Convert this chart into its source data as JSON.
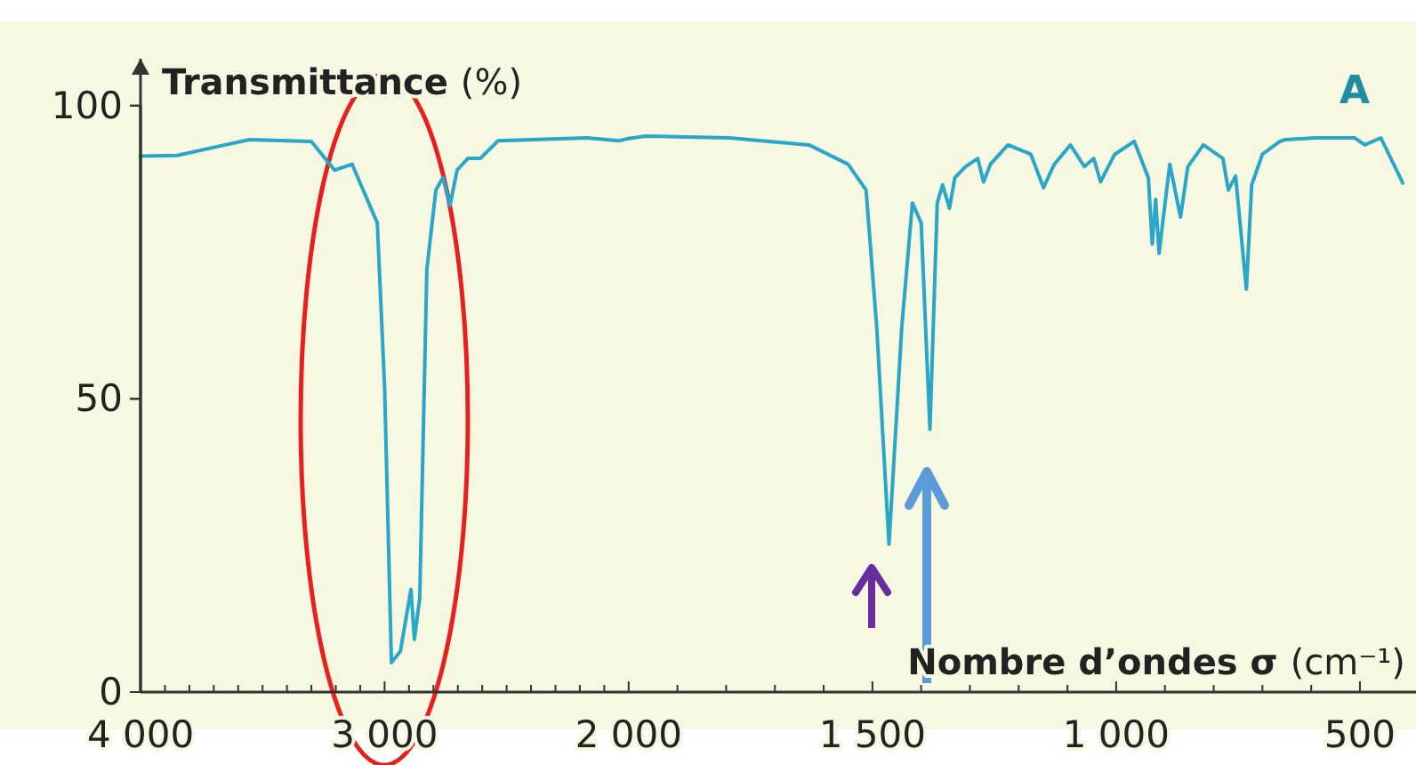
{
  "chart_data": [
    {
      "type": "line",
      "ylabel": "Transmittance (%)",
      "xlim": [
        4000,
        2000
      ],
      "ylim": [
        0,
        108
      ],
      "yticks": [
        0,
        50,
        100
      ],
      "xticks": [
        {
          "value": 4000,
          "label": "4 000"
        },
        {
          "value": 3900,
          "label": null
        },
        {
          "value": 3800,
          "label": null
        },
        {
          "value": 3700,
          "label": null
        },
        {
          "value": 3600,
          "label": null
        },
        {
          "value": 3500,
          "label": null
        },
        {
          "value": 3400,
          "label": null
        },
        {
          "value": 3300,
          "label": null
        },
        {
          "value": 3200,
          "label": null
        },
        {
          "value": 3100,
          "label": null
        },
        {
          "value": 3000,
          "label": "3 000"
        },
        {
          "value": 2900,
          "label": null
        },
        {
          "value": 2800,
          "label": null
        },
        {
          "value": 2700,
          "label": null
        },
        {
          "value": 2600,
          "label": null
        },
        {
          "value": 2500,
          "label": null
        },
        {
          "value": 2400,
          "label": null
        },
        {
          "value": 2300,
          "label": null
        },
        {
          "value": 2200,
          "label": null
        },
        {
          "value": 2100,
          "label": null
        }
      ],
      "grid": false,
      "marker": "none",
      "line_style": "solid",
      "series": [
        {
          "color": "#2aa6c8",
          "x": [
            4000,
            3850,
            3555,
            3300,
            3205,
            3133,
            3030,
            3000,
            2972,
            2935,
            2892,
            2878,
            2856,
            2827,
            2790,
            2761,
            2732,
            2703,
            2659,
            2608,
            2535,
            2171,
            2039,
            2000
          ],
          "values": [
            91.4,
            91.5,
            94.2,
            93.9,
            89,
            90,
            80,
            52,
            5,
            7,
            17.5,
            9,
            16,
            72,
            85.6,
            87.7,
            83,
            89,
            91,
            91,
            94,
            94.5,
            94,
            94.4
          ]
        }
      ]
    },
    {
      "type": "line",
      "xlabel": "Nombre d’ondes σ (cm⁻¹)",
      "annotations": [
        "A"
      ],
      "tick_labels": "x",
      "xlim": [
        2000,
        385
      ],
      "ylim": [
        0,
        100
      ],
      "yticks": [
        0,
        50,
        100
      ],
      "xticks": [
        {
          "value": 2000,
          "label": "2 000"
        },
        {
          "value": 1900,
          "label": null
        },
        {
          "value": 1800,
          "label": null
        },
        {
          "value": 1700,
          "label": null
        },
        {
          "value": 1600,
          "label": null
        },
        {
          "value": 1500,
          "label": "1 500"
        },
        {
          "value": 1400,
          "label": null
        },
        {
          "value": 1300,
          "label": null
        },
        {
          "value": 1200,
          "label": null
        },
        {
          "value": 1100,
          "label": null
        },
        {
          "value": 1000,
          "label": "1 000"
        },
        {
          "value": 900,
          "label": null
        },
        {
          "value": 800,
          "label": null
        },
        {
          "value": 700,
          "label": null
        },
        {
          "value": 600,
          "label": null
        },
        {
          "value": 500,
          "label": "500"
        }
      ],
      "grid": false,
      "marker": "none",
      "line_style": "solid",
      "series": [
        {
          "color": "#2aa6c8",
          "x": [
            2000,
            1965,
            1794,
            1630,
            1550,
            1513,
            1491,
            1466,
            1440,
            1418,
            1400,
            1382,
            1367,
            1356,
            1342,
            1331,
            1309,
            1284,
            1272,
            1258,
            1222,
            1175,
            1149,
            1127,
            1094,
            1065,
            1046,
            1032,
            1003,
            963,
            934,
            926,
            919,
            912,
            901,
            890,
            868,
            853,
            821,
            781,
            770,
            755,
            733,
            722,
            700,
            664,
            653,
            591,
            511,
            490,
            457,
            412
          ],
          "values": [
            94.4,
            94.8,
            94.5,
            93.3,
            90,
            85.6,
            62,
            25.2,
            62,
            83.4,
            80,
            44.8,
            83.4,
            86.5,
            82.5,
            87.7,
            89.6,
            91,
            87,
            90,
            93.3,
            91.7,
            86,
            90,
            93.3,
            89.6,
            91,
            87,
            91.7,
            93.9,
            87.7,
            76.4,
            84,
            74.8,
            82.5,
            90,
            81,
            89.6,
            93.3,
            91,
            85.6,
            88,
            68.7,
            86.5,
            91.7,
            93.9,
            94.2,
            94.5,
            94.5,
            93.3,
            94.5,
            86.8
          ]
        }
      ]
    }
  ]
}
